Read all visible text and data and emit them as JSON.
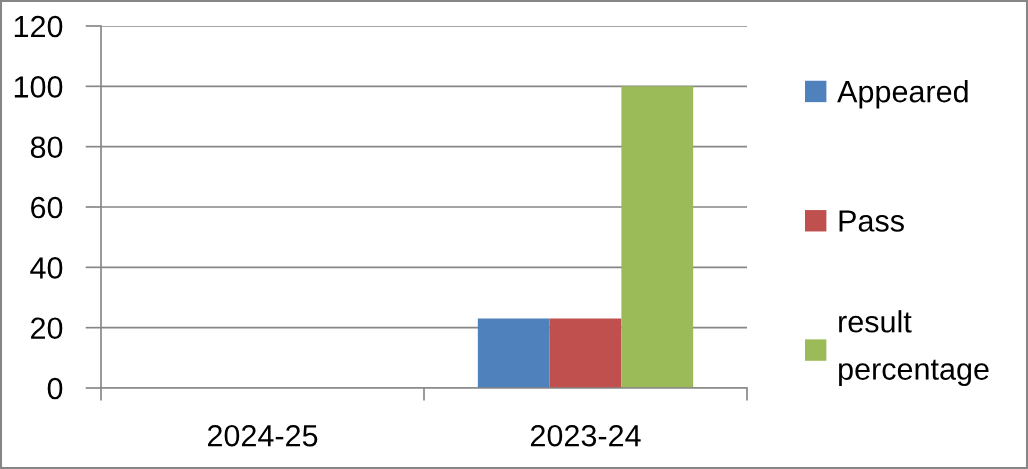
{
  "chart_data": {
    "type": "bar",
    "categories": [
      "2024-25",
      "2023-24"
    ],
    "series": [
      {
        "name": "Appeared",
        "color": "#4f81bd",
        "values": [
          null,
          23
        ]
      },
      {
        "name": "Pass",
        "color": "#c0504d",
        "values": [
          null,
          23
        ]
      },
      {
        "name": "result percentage",
        "color": "#9bbb59",
        "values": [
          null,
          100
        ]
      }
    ],
    "ylim": [
      0,
      120
    ],
    "yticks": [
      0,
      20,
      40,
      60,
      80,
      100,
      120
    ],
    "grid": "y",
    "legend": "right"
  }
}
